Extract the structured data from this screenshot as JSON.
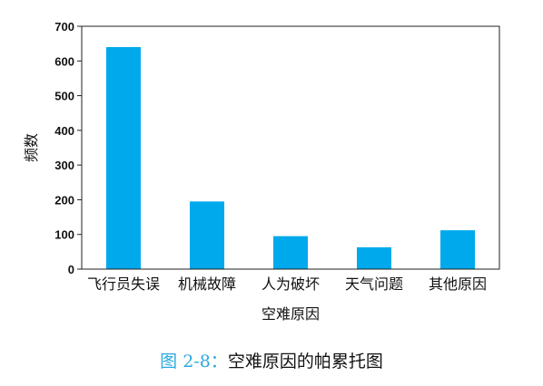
{
  "chart_data": {
    "type": "bar",
    "categories": [
      "飞行员失误",
      "机械故障",
      "人为破坏",
      "天气问题",
      "其他原因"
    ],
    "values": [
      640,
      195,
      95,
      63,
      112
    ],
    "xlabel": "空难原因",
    "ylabel": "频数",
    "ylim": [
      0,
      700
    ],
    "yticks": [
      0,
      100,
      200,
      300,
      400,
      500,
      600,
      700
    ],
    "bar_color": "#00a9ec",
    "grid": false
  },
  "caption": {
    "prefix": "图 2-8：",
    "text": "空难原因的帕累托图"
  }
}
